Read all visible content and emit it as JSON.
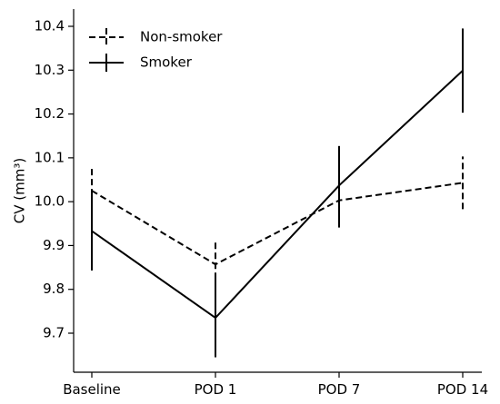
{
  "chart_data": {
    "type": "line",
    "title": "",
    "xlabel": "",
    "ylabel": "CV (mm³)",
    "categories": [
      "Baseline",
      "POD 1",
      "POD 7",
      "POD 14"
    ],
    "ylim": [
      9.6,
      10.43
    ],
    "yticks": [
      9.7,
      9.8,
      9.9,
      10.0,
      10.1,
      10.2,
      10.3,
      10.4
    ],
    "ytick_labels": [
      "9.7",
      "9.8",
      "9.9",
      "10.0",
      "10.1",
      "10.2",
      "10.3",
      "10.4"
    ],
    "grid": false,
    "legend_position": "top-left",
    "series": [
      {
        "name": "Non-smoker",
        "line_style": "dashed",
        "color": "#000000",
        "values": [
          10.025,
          9.857,
          10.003,
          10.043
        ],
        "error": [
          0.056,
          0.056,
          0.062,
          0.06
        ]
      },
      {
        "name": "Smoker",
        "line_style": "solid",
        "color": "#000000",
        "values": [
          9.933,
          9.735,
          10.037,
          10.299
        ],
        "error": [
          0.09,
          0.09,
          0.09,
          0.096
        ]
      }
    ]
  }
}
